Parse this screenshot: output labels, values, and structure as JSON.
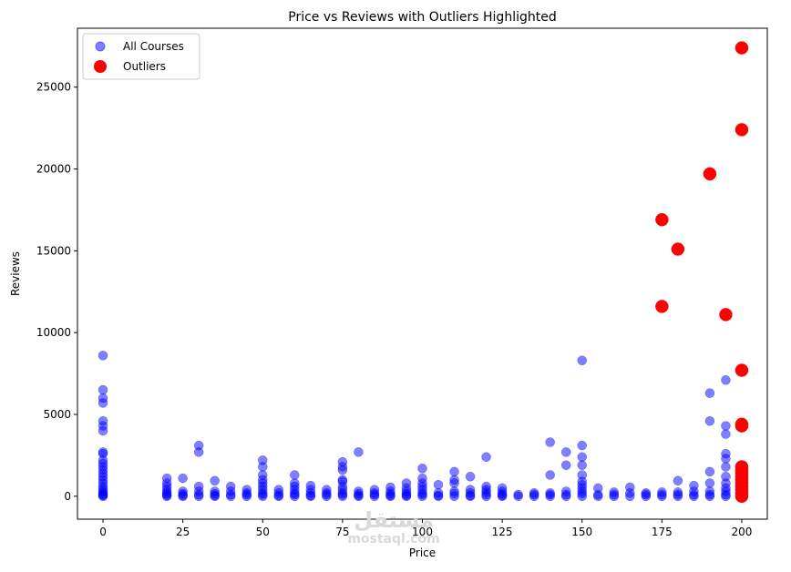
{
  "chart_data": {
    "type": "scatter",
    "title": "Price vs Reviews with Outliers Highlighted",
    "xlabel": "Price",
    "ylabel": "Reviews",
    "xlim": [
      -8,
      208
    ],
    "ylim": [
      -1400,
      28600
    ],
    "xticks": [
      0,
      25,
      50,
      75,
      100,
      125,
      150,
      175,
      200
    ],
    "yticks": [
      0,
      5000,
      10000,
      15000,
      20000,
      25000
    ],
    "xtick_labels": [
      "0",
      "25",
      "50",
      "75",
      "100",
      "125",
      "150",
      "175",
      "200"
    ],
    "ytick_labels": [
      "0",
      "5000",
      "10000",
      "15000",
      "20000",
      "25000"
    ],
    "grid": false,
    "legend_position": "top-left",
    "series": [
      {
        "name": "All Courses",
        "color": "#0000ff",
        "opacity": 0.5,
        "points": [
          [
            0,
            8600
          ],
          [
            0,
            6500
          ],
          [
            0,
            6000
          ],
          [
            0,
            5700
          ],
          [
            0,
            4600
          ],
          [
            0,
            4300
          ],
          [
            0,
            4000
          ],
          [
            0,
            2700
          ],
          [
            0,
            2600
          ],
          [
            0,
            2200
          ],
          [
            0,
            2000
          ],
          [
            0,
            1800
          ],
          [
            0,
            1600
          ],
          [
            0,
            1400
          ],
          [
            0,
            1200
          ],
          [
            0,
            1000
          ],
          [
            0,
            800
          ],
          [
            0,
            600
          ],
          [
            0,
            450
          ],
          [
            0,
            300
          ],
          [
            0,
            200
          ],
          [
            0,
            100
          ],
          [
            0,
            50
          ],
          [
            0,
            0
          ],
          [
            20,
            1100
          ],
          [
            20,
            800
          ],
          [
            20,
            600
          ],
          [
            20,
            400
          ],
          [
            20,
            250
          ],
          [
            20,
            150
          ],
          [
            20,
            60
          ],
          [
            20,
            0
          ],
          [
            25,
            1100
          ],
          [
            25,
            300
          ],
          [
            25,
            150
          ],
          [
            25,
            50
          ],
          [
            25,
            0
          ],
          [
            30,
            3100
          ],
          [
            30,
            2700
          ],
          [
            30,
            600
          ],
          [
            30,
            300
          ],
          [
            30,
            100
          ],
          [
            30,
            0
          ],
          [
            35,
            950
          ],
          [
            35,
            300
          ],
          [
            35,
            150
          ],
          [
            35,
            50
          ],
          [
            35,
            0
          ],
          [
            40,
            600
          ],
          [
            40,
            300
          ],
          [
            40,
            100
          ],
          [
            40,
            0
          ],
          [
            45,
            400
          ],
          [
            45,
            200
          ],
          [
            45,
            100
          ],
          [
            45,
            0
          ],
          [
            50,
            2200
          ],
          [
            50,
            1800
          ],
          [
            50,
            1300
          ],
          [
            50,
            1000
          ],
          [
            50,
            800
          ],
          [
            50,
            600
          ],
          [
            50,
            400
          ],
          [
            50,
            200
          ],
          [
            50,
            100
          ],
          [
            50,
            0
          ],
          [
            55,
            400
          ],
          [
            55,
            200
          ],
          [
            55,
            50
          ],
          [
            55,
            0
          ],
          [
            60,
            1300
          ],
          [
            60,
            800
          ],
          [
            60,
            600
          ],
          [
            60,
            400
          ],
          [
            60,
            200
          ],
          [
            60,
            100
          ],
          [
            60,
            0
          ],
          [
            65,
            650
          ],
          [
            65,
            400
          ],
          [
            65,
            200
          ],
          [
            65,
            50
          ],
          [
            65,
            0
          ],
          [
            70,
            400
          ],
          [
            70,
            200
          ],
          [
            70,
            100
          ],
          [
            70,
            0
          ],
          [
            75,
            2100
          ],
          [
            75,
            1800
          ],
          [
            75,
            1600
          ],
          [
            75,
            1000
          ],
          [
            75,
            900
          ],
          [
            75,
            600
          ],
          [
            75,
            400
          ],
          [
            75,
            200
          ],
          [
            75,
            100
          ],
          [
            75,
            0
          ],
          [
            80,
            2700
          ],
          [
            80,
            300
          ],
          [
            80,
            150
          ],
          [
            80,
            50
          ],
          [
            80,
            0
          ],
          [
            85,
            400
          ],
          [
            85,
            200
          ],
          [
            85,
            100
          ],
          [
            85,
            0
          ],
          [
            90,
            550
          ],
          [
            90,
            300
          ],
          [
            90,
            150
          ],
          [
            90,
            50
          ],
          [
            90,
            0
          ],
          [
            95,
            800
          ],
          [
            95,
            500
          ],
          [
            95,
            300
          ],
          [
            95,
            150
          ],
          [
            95,
            50
          ],
          [
            95,
            0
          ],
          [
            100,
            1700
          ],
          [
            100,
            1100
          ],
          [
            100,
            800
          ],
          [
            100,
            600
          ],
          [
            100,
            400
          ],
          [
            100,
            200
          ],
          [
            100,
            100
          ],
          [
            100,
            0
          ],
          [
            105,
            700
          ],
          [
            105,
            200
          ],
          [
            105,
            50
          ],
          [
            105,
            0
          ],
          [
            110,
            1500
          ],
          [
            110,
            1000
          ],
          [
            110,
            800
          ],
          [
            110,
            300
          ],
          [
            110,
            150
          ],
          [
            110,
            0
          ],
          [
            115,
            1200
          ],
          [
            115,
            400
          ],
          [
            115,
            200
          ],
          [
            115,
            50
          ],
          [
            115,
            0
          ],
          [
            120,
            2400
          ],
          [
            120,
            600
          ],
          [
            120,
            400
          ],
          [
            120,
            250
          ],
          [
            120,
            100
          ],
          [
            120,
            0
          ],
          [
            125,
            500
          ],
          [
            125,
            300
          ],
          [
            125,
            150
          ],
          [
            125,
            50
          ],
          [
            125,
            0
          ],
          [
            130,
            100
          ],
          [
            130,
            0
          ],
          [
            135,
            200
          ],
          [
            135,
            100
          ],
          [
            135,
            0
          ],
          [
            140,
            3300
          ],
          [
            140,
            1300
          ],
          [
            140,
            200
          ],
          [
            140,
            100
          ],
          [
            140,
            0
          ],
          [
            145,
            2700
          ],
          [
            145,
            1900
          ],
          [
            145,
            300
          ],
          [
            145,
            100
          ],
          [
            145,
            0
          ],
          [
            150,
            8300
          ],
          [
            150,
            3100
          ],
          [
            150,
            2400
          ],
          [
            150,
            1900
          ],
          [
            150,
            1300
          ],
          [
            150,
            900
          ],
          [
            150,
            700
          ],
          [
            150,
            500
          ],
          [
            150,
            300
          ],
          [
            150,
            150
          ],
          [
            150,
            0
          ],
          [
            155,
            500
          ],
          [
            155,
            100
          ],
          [
            155,
            0
          ],
          [
            160,
            250
          ],
          [
            160,
            100
          ],
          [
            160,
            0
          ],
          [
            165,
            550
          ],
          [
            165,
            200
          ],
          [
            165,
            0
          ],
          [
            170,
            200
          ],
          [
            170,
            100
          ],
          [
            170,
            0
          ],
          [
            175,
            250
          ],
          [
            175,
            100
          ],
          [
            175,
            0
          ],
          [
            180,
            950
          ],
          [
            180,
            250
          ],
          [
            180,
            100
          ],
          [
            180,
            0
          ],
          [
            185,
            650
          ],
          [
            185,
            300
          ],
          [
            185,
            100
          ],
          [
            185,
            0
          ],
          [
            190,
            6300
          ],
          [
            190,
            4600
          ],
          [
            190,
            1500
          ],
          [
            190,
            800
          ],
          [
            190,
            300
          ],
          [
            190,
            100
          ],
          [
            190,
            0
          ],
          [
            195,
            7100
          ],
          [
            195,
            4300
          ],
          [
            195,
            3800
          ],
          [
            195,
            2600
          ],
          [
            195,
            2300
          ],
          [
            195,
            1800
          ],
          [
            195,
            1200
          ],
          [
            195,
            800
          ],
          [
            195,
            500
          ],
          [
            195,
            300
          ],
          [
            195,
            100
          ],
          [
            195,
            0
          ],
          [
            200,
            4400
          ],
          [
            200,
            1800
          ],
          [
            200,
            1000
          ],
          [
            200,
            500
          ],
          [
            200,
            200
          ],
          [
            200,
            0
          ]
        ]
      },
      {
        "name": "Outliers",
        "color": "#ff0000",
        "opacity": 1,
        "points": [
          [
            200,
            27400
          ],
          [
            200,
            22400
          ],
          [
            190,
            19700
          ],
          [
            175,
            16900
          ],
          [
            180,
            15100
          ],
          [
            175,
            11600
          ],
          [
            195,
            11100
          ],
          [
            200,
            7700
          ],
          [
            200,
            4400
          ],
          [
            200,
            4300
          ],
          [
            200,
            1800
          ],
          [
            200,
            1600
          ],
          [
            200,
            1400
          ],
          [
            200,
            1200
          ],
          [
            200,
            1000
          ],
          [
            200,
            800
          ],
          [
            200,
            600
          ],
          [
            200,
            400
          ],
          [
            200,
            200
          ],
          [
            200,
            0
          ]
        ]
      }
    ]
  },
  "watermark": {
    "arabic": "مستقل",
    "latin": "mostaql.com"
  }
}
